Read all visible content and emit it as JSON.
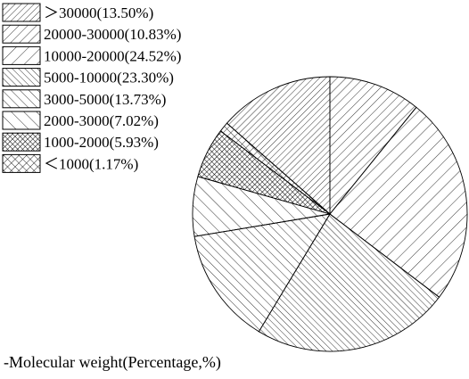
{
  "chart_data": {
    "type": "pie",
    "title": "",
    "caption": "-Molecular weight(Percentage,%)",
    "legend_position": "top-left",
    "slices": [
      {
        "label": "＞30000(13.50%)",
        "value": 13.5,
        "pattern": "hatch-dense"
      },
      {
        "label": "20000-30000(10.83%)",
        "value": 10.83,
        "pattern": "hatch-medium"
      },
      {
        "label": "10000-20000(24.52%)",
        "value": 24.52,
        "pattern": "hatch-wide"
      },
      {
        "label": "5000-10000(23.30%)",
        "value": 23.3,
        "pattern": "back-dense"
      },
      {
        "label": "3000-5000(13.73%)",
        "value": 13.73,
        "pattern": "back-medium"
      },
      {
        "label": "2000-3000(7.02%)",
        "value": 7.02,
        "pattern": "back-wide"
      },
      {
        "label": "1000-2000(5.93%)",
        "value": 5.93,
        "pattern": "cross-dense"
      },
      {
        "label": "＜1000(1.17%)",
        "value": 1.17,
        "pattern": "cross-open"
      }
    ]
  }
}
